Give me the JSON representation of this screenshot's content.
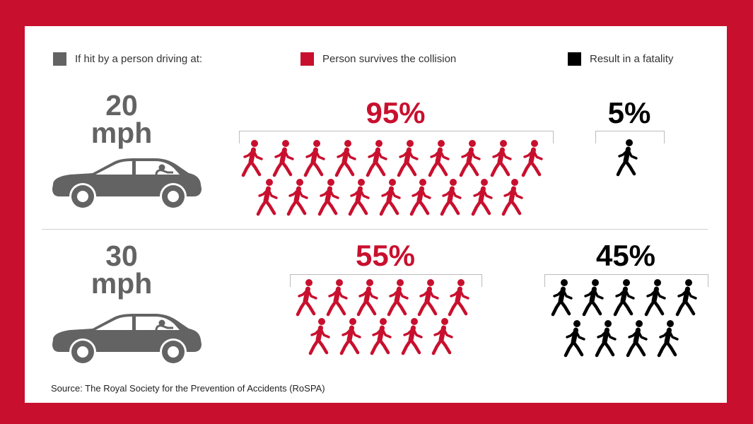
{
  "legend": {
    "driving": {
      "label": "If hit by a person driving at:",
      "color": "#636363"
    },
    "survives": {
      "label": "Person survives the collision",
      "color": "#c8102e"
    },
    "fatality": {
      "label": "Result in a fatality",
      "color": "#000000"
    }
  },
  "chart_data": {
    "type": "pictogram",
    "rows": [
      {
        "speed": "20",
        "unit": "mph",
        "survive": {
          "label": "95%",
          "value": 95,
          "icons": 19
        },
        "fatal": {
          "label": "5%",
          "value": 5,
          "icons": 1
        }
      },
      {
        "speed": "30",
        "unit": "mph",
        "survive": {
          "label": "55%",
          "value": 55,
          "icons": 11
        },
        "fatal": {
          "label": "45%",
          "value": 45,
          "icons": 9
        }
      }
    ]
  },
  "icons": {
    "car": "car-icon",
    "pedestrian": "pedestrian-icon"
  },
  "source": "Source: The Royal Society for the Prevention of Accidents (RoSPA)"
}
